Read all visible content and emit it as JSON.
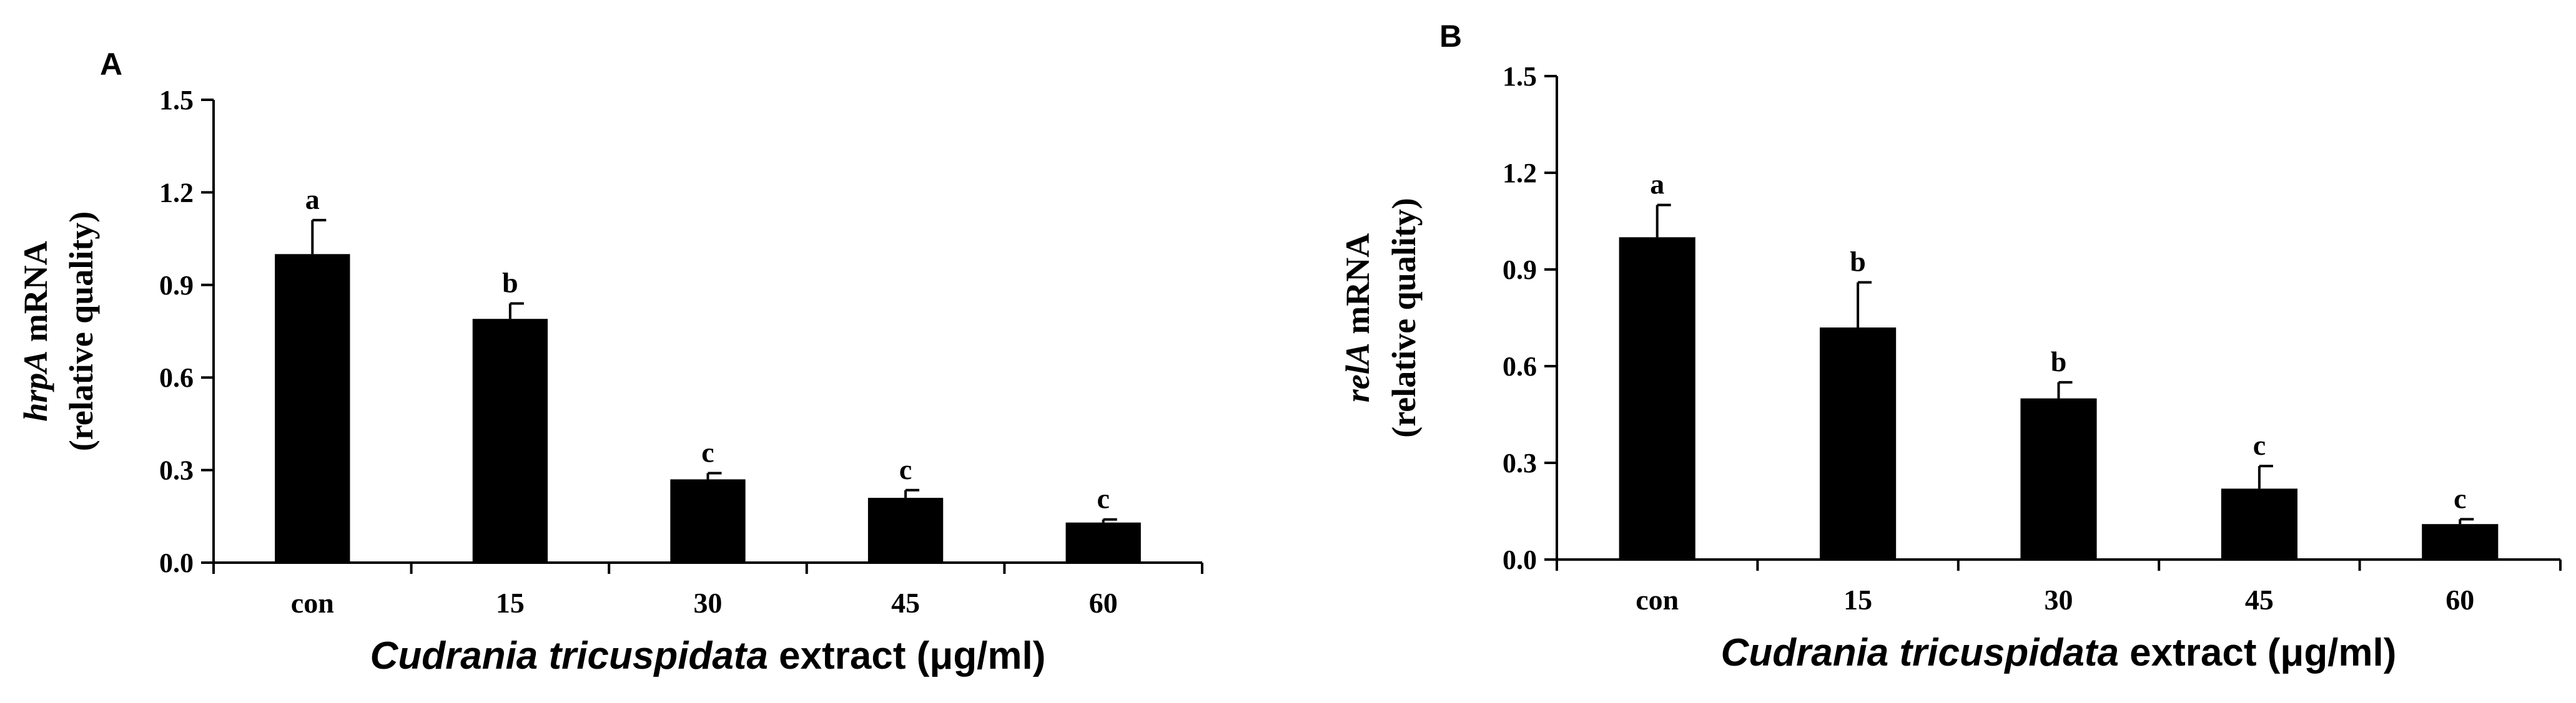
{
  "chart_data": [
    {
      "panel_label": "A",
      "type": "bar",
      "categories": [
        "con",
        "15",
        "30",
        "45",
        "60"
      ],
      "values": [
        1.0,
        0.79,
        0.27,
        0.21,
        0.13
      ],
      "errors": [
        0.11,
        0.05,
        0.02,
        0.025,
        0.01
      ],
      "significance": [
        "a",
        "b",
        "c",
        "c",
        "c"
      ],
      "ylim": [
        0,
        1.5
      ],
      "yticks": [
        "0.0",
        "0.3",
        "0.6",
        "0.9",
        "1.2",
        "1.5"
      ],
      "ylabel_gene": "hrpA",
      "ylabel_suffix": " mRNA",
      "ylabel_line2": "(relative quality)",
      "xlabel_species": "Cudrania tricuspidata",
      "xlabel_suffix": " extract (μg/ml)",
      "bar_color": "#000000"
    },
    {
      "panel_label": "B",
      "type": "bar",
      "categories": [
        "con",
        "15",
        "30",
        "45",
        "60"
      ],
      "values": [
        1.0,
        0.72,
        0.5,
        0.22,
        0.11
      ],
      "errors": [
        0.1,
        0.14,
        0.05,
        0.07,
        0.015
      ],
      "significance": [
        "a",
        "b",
        "b",
        "c",
        "c"
      ],
      "ylim": [
        0,
        1.5
      ],
      "yticks": [
        "0.0",
        "0.3",
        "0.6",
        "0.9",
        "1.2",
        "1.5"
      ],
      "ylabel_gene": "relA",
      "ylabel_suffix": " mRNA",
      "ylabel_line2": "(relative quality)",
      "xlabel_species": "Cudrania tricuspidata",
      "xlabel_suffix": " extract (μg/ml)",
      "bar_color": "#000000"
    }
  ]
}
